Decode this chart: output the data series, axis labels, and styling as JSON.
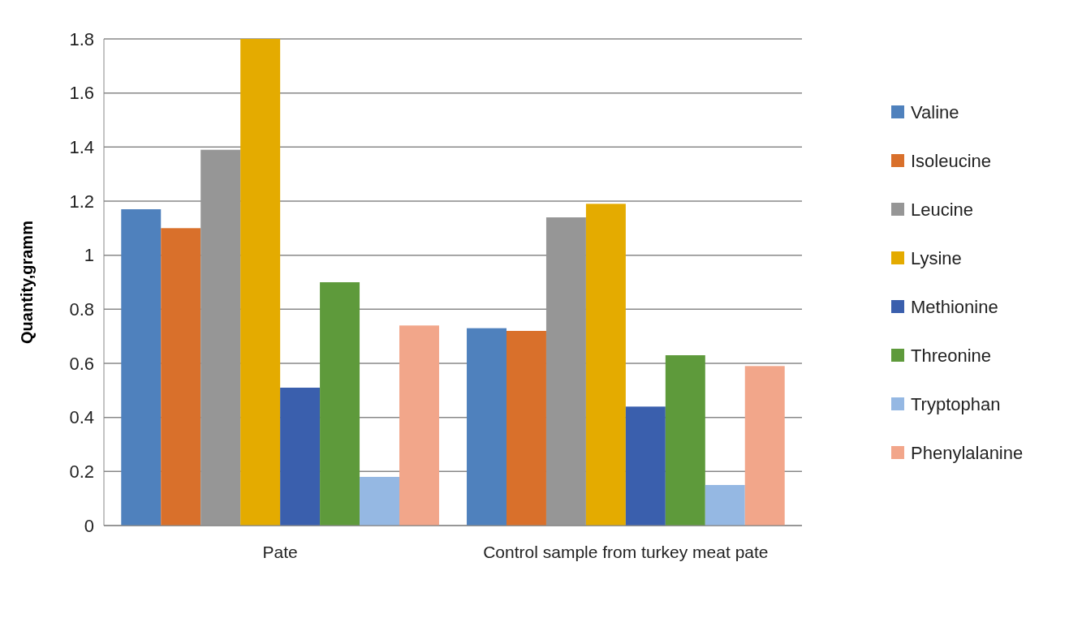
{
  "chart_data": {
    "type": "bar",
    "ylabel": "Quantity,gramm",
    "categories": [
      "Pate",
      "Control sample from turkey meat pate"
    ],
    "series": [
      {
        "name": "Valine",
        "color": "#4f81bd",
        "values": [
          1.17,
          0.73
        ]
      },
      {
        "name": "Isoleucine",
        "color": "#d9702b",
        "values": [
          1.1,
          0.72
        ]
      },
      {
        "name": "Leucine",
        "color": "#969696",
        "values": [
          1.39,
          1.14
        ]
      },
      {
        "name": "Lysine",
        "color": "#e4ab00",
        "values": [
          1.8,
          1.19
        ]
      },
      {
        "name": "Methionine",
        "color": "#3a5fad",
        "values": [
          0.51,
          0.44
        ]
      },
      {
        "name": "Threonine",
        "color": "#5e9a3b",
        "values": [
          0.9,
          0.63
        ]
      },
      {
        "name": "Tryptophan",
        "color": "#95b8e3",
        "values": [
          0.18,
          0.15
        ]
      },
      {
        "name": "Phenylalanine",
        "color": "#f2a68a",
        "values": [
          0.74,
          0.59
        ]
      }
    ],
    "ylim": [
      0,
      1.8
    ],
    "yticks": [
      0,
      0.2,
      0.4,
      0.6,
      0.8,
      1,
      1.2,
      1.4,
      1.6,
      1.8
    ],
    "grid": "y",
    "legend": "right"
  }
}
